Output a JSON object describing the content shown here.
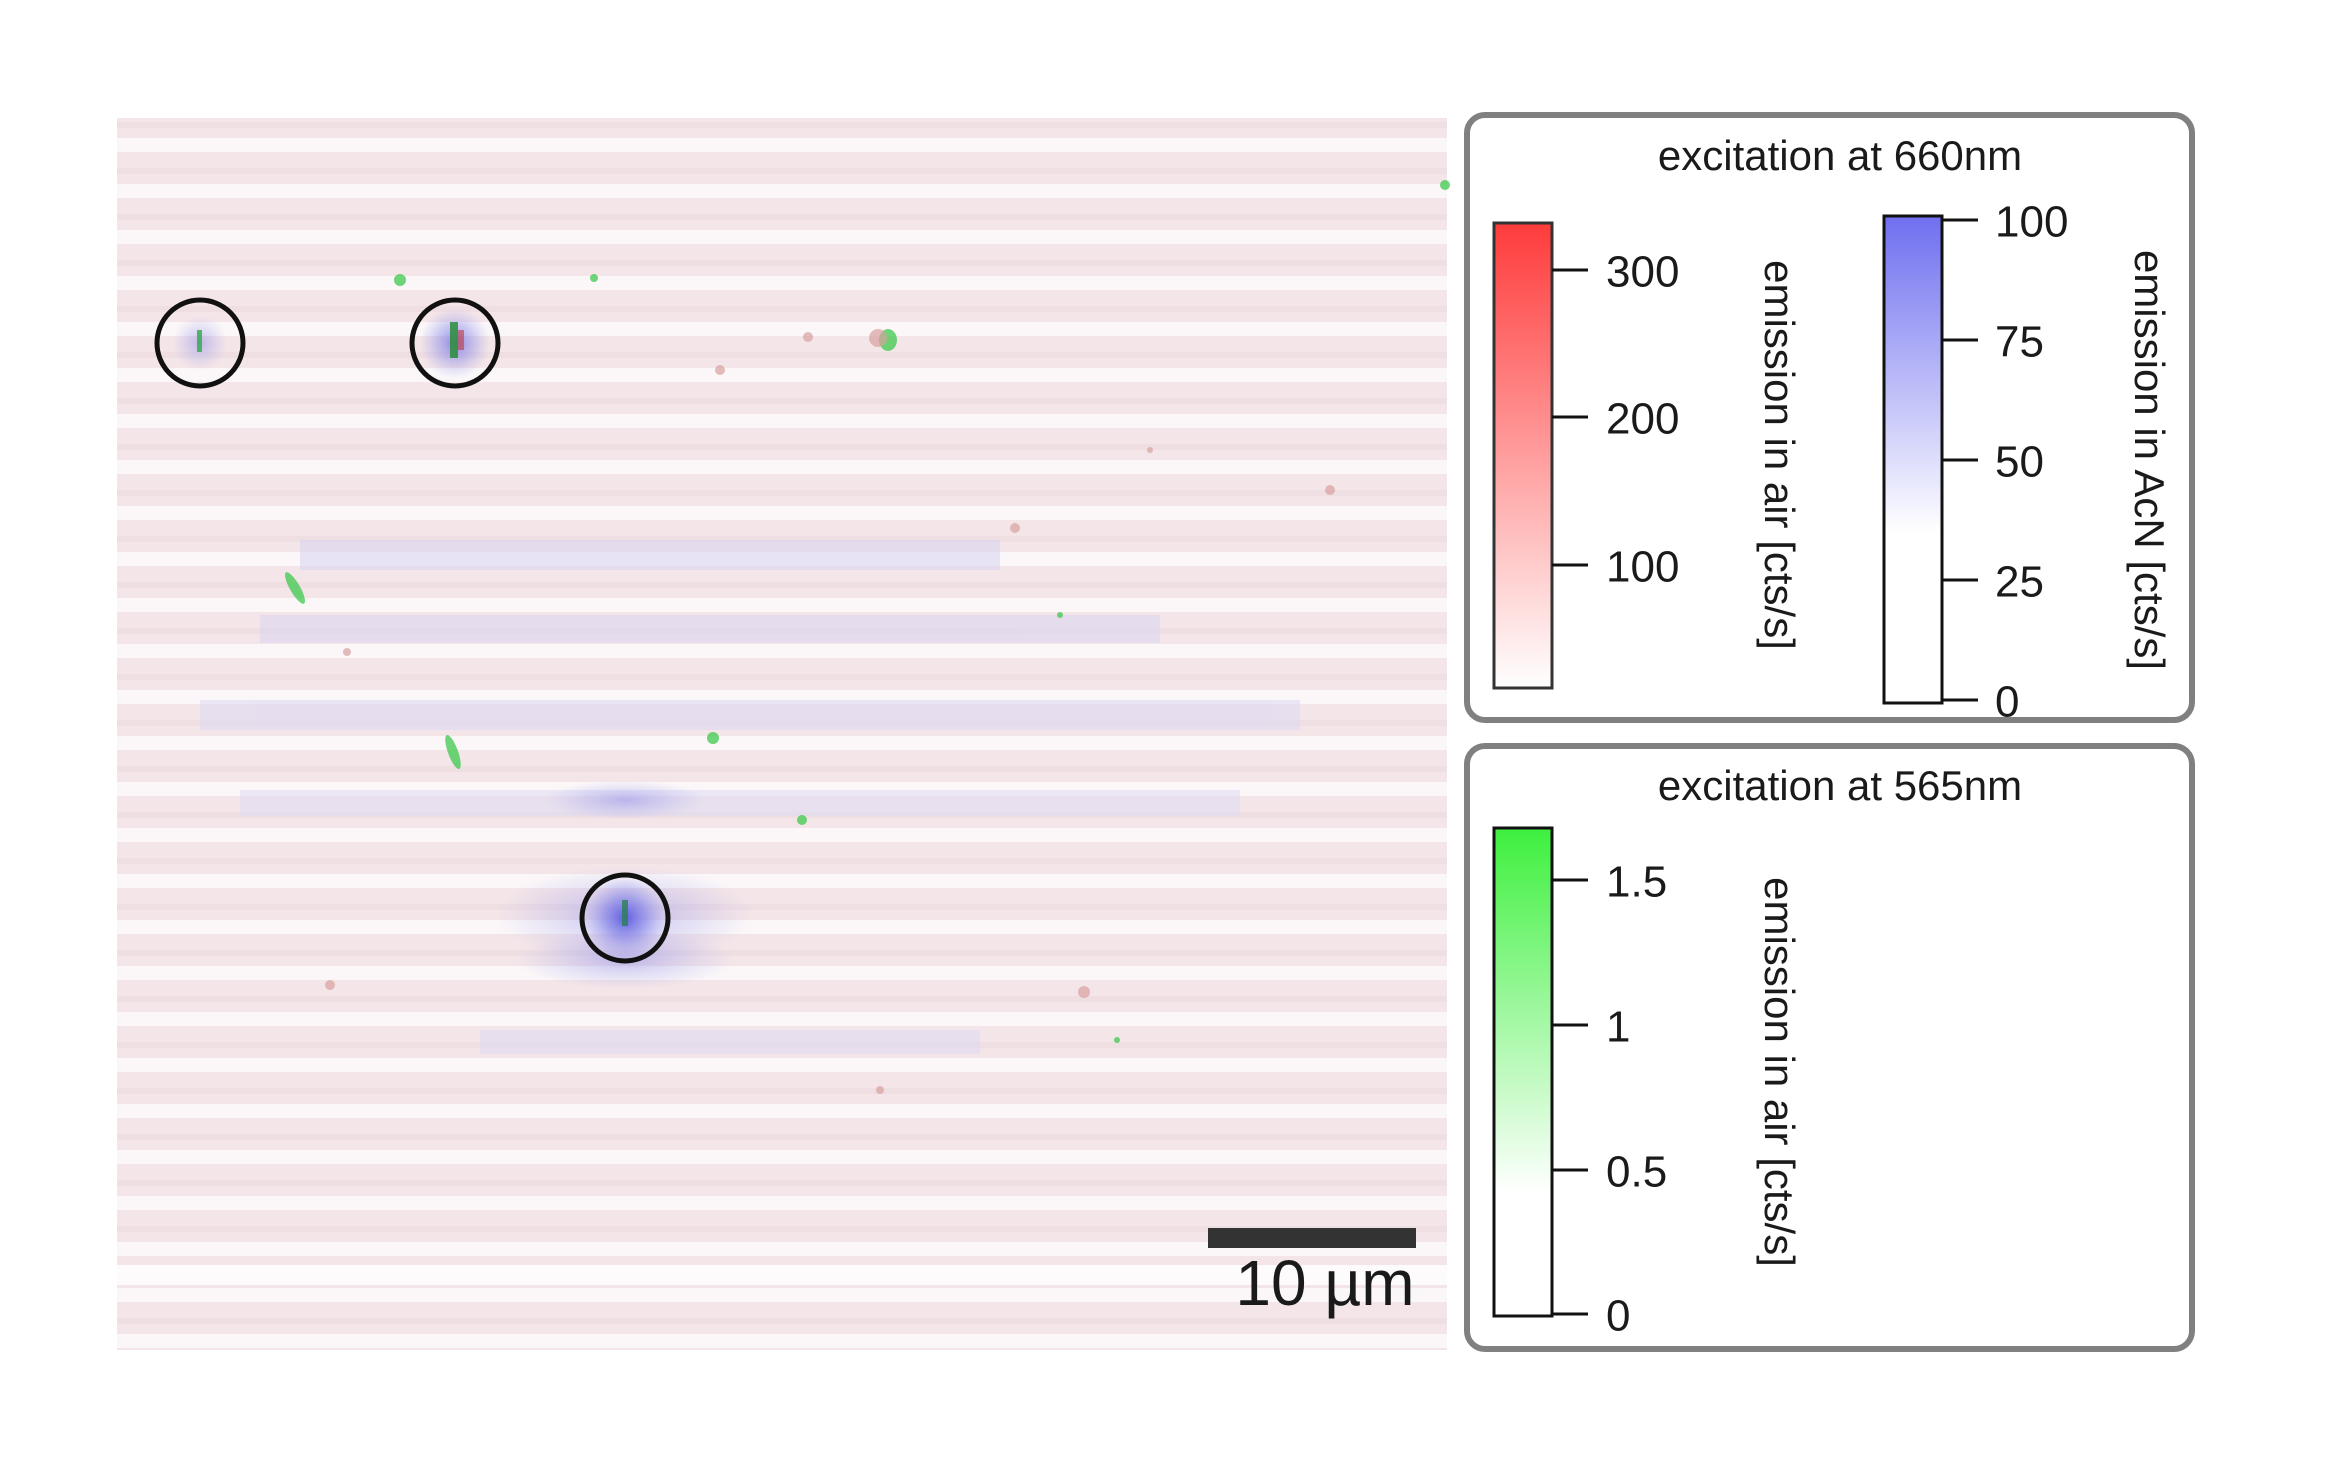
{
  "image": {
    "scale_bar_label": "10 µm",
    "circled_particles_count": 3
  },
  "colors": {
    "red_channel": "#ff3b3b",
    "blue_channel": "#6f6ff0",
    "green_channel": "#3ef03e",
    "panel_border": "#808080",
    "scale_bar": "#333333",
    "circle": "#111111"
  },
  "legend_660": {
    "title": "excitation at 660nm",
    "red_scale": {
      "label": "emission in air [cts/s]",
      "ticks": [
        "300",
        "200",
        "100"
      ]
    },
    "blue_scale": {
      "label": "emission in AcN [cts/s]",
      "ticks": [
        "100",
        "75",
        "50",
        "25",
        "0"
      ]
    }
  },
  "legend_565": {
    "title": "excitation at 565nm",
    "green_scale": {
      "label": "emission in air [cts/s]",
      "ticks": [
        "1.5",
        "1",
        "0.5",
        "0"
      ]
    }
  }
}
